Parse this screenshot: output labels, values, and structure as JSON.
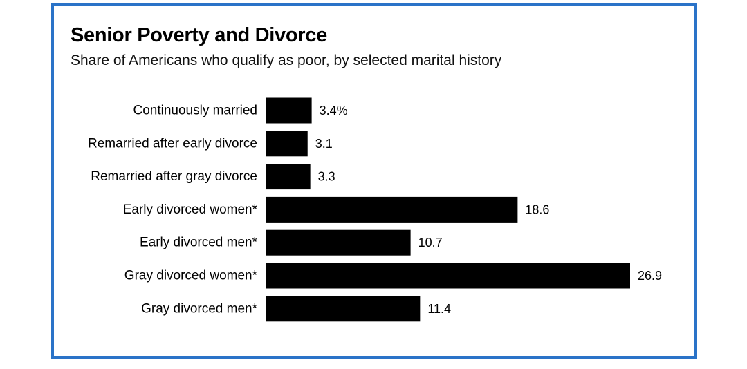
{
  "chart_data": {
    "type": "bar",
    "orientation": "horizontal",
    "title": "Senior Poverty and Divorce",
    "subtitle": "Share of Americans who qualify as poor, by selected marital history",
    "categories": [
      "Continuously married",
      "Remarried after early divorce",
      "Remarried after gray divorce",
      "Early divorced women*",
      "Early divorced men*",
      "Gray divorced women*",
      "Gray divorced men*"
    ],
    "values": [
      3.4,
      3.1,
      3.3,
      18.6,
      10.7,
      26.9,
      11.4
    ],
    "value_labels": [
      "3.4%",
      "3.1",
      "3.3",
      "18.6",
      "10.7",
      "26.9",
      "11.4"
    ],
    "xlim": [
      0,
      26.9
    ],
    "grid": false,
    "legend": "none"
  },
  "colors": {
    "bar": "#000000",
    "frame_border": "#2a73c8",
    "text": "#000000"
  }
}
